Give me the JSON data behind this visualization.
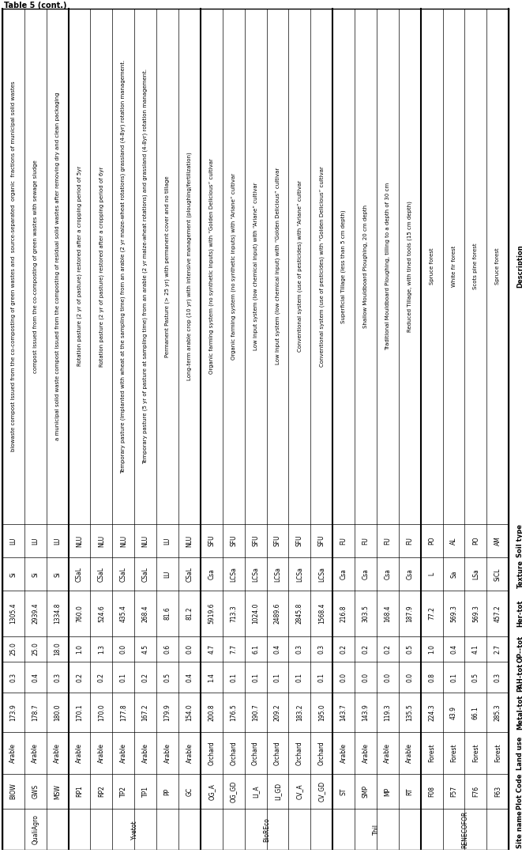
{
  "title": "Table 5 (cont.)",
  "col_headers": [
    "Site name",
    "Plot Code",
    "Land use",
    "Metal-tot",
    "PAH-tot",
    "OP-\ntot",
    "Her-tot",
    "Texture",
    "Soil type",
    "Description"
  ],
  "rows": [
    [
      "QualiAgro",
      "BIOW",
      "Arable",
      "173.9",
      "0.3",
      "25.0",
      "1305.4",
      "Si",
      "LU",
      "biowaste compost issued from the co-composting of green wastes and  source-separated  organic  fractions\nof municipal solid wastes"
    ],
    [
      "",
      "GWS",
      "Arable",
      "178.7",
      "0.4",
      "25.0",
      "2939.4",
      "Si",
      "LU",
      "compost issued from the co-composting of green wastes with sewage sludge"
    ],
    [
      "",
      "MSW",
      "Arable",
      "180.0",
      "0.3",
      "18.0",
      "1334.8",
      "Si",
      "LU",
      "a municipal solid waste compost issued from the composting of residual solid wastes after removing dry and cl⁠ean\npackaging"
    ],
    [
      "Yvetot",
      "RP1",
      "Arable",
      "170.1",
      "0.2",
      "1.0",
      "760.0",
      "CSaL",
      "NLU",
      "Rotation pasture (2 yr of pasture) restored after a cropping period of 5yr"
    ],
    [
      "",
      "RP2",
      "Arable",
      "170.0",
      "0.2",
      "1.3",
      "524.6",
      "CSaL",
      "NLU",
      "Rotation pasture (2 yr of pasture) restored after a cropping period of 6yr"
    ],
    [
      "",
      "TP2",
      "Arable",
      "177.8",
      "0.1",
      "0.0",
      "435.4",
      "CSaL",
      "NLU",
      "Temporary pasture (implanted with wheat at the sampling time) from an arable (2 yr maize-wheat rotations)\ngrassland (4-8yr) rotation management."
    ],
    [
      "",
      "TP1",
      "Arable",
      "167.2",
      "0.2",
      "4.5",
      "268.4",
      "CSaL",
      "NLU",
      "Temporary pasture (5 yr of pasture at sampling time) from an arable (2 yr maize-wheat rotations) and grassland\n(4-8yr) rotation management."
    ],
    [
      "",
      "PP",
      "Arable",
      "179.9",
      "0.5",
      "0.6",
      "81.6",
      "LU",
      "LU",
      "Permanent Pasture (> 25 yr) with permanent cover and no tillage"
    ],
    [
      "",
      "GC",
      "Arable",
      "154.0",
      "0.4",
      "0.0",
      "81.2",
      "CSaL",
      "NLU",
      "Long-term arable crop (10 yr) with intensive management (ploughing/fertilization)"
    ],
    [
      "BioREco",
      "OG_A",
      "Orchard",
      "200.8",
      "1.4",
      "4.7",
      "5919.6",
      "Csa",
      "SFU",
      "Organic farming system (no synthetic inputs) with “Golden Delicious” cultivar"
    ],
    [
      "",
      "OG_GD",
      "Orchard",
      "176.5",
      "0.1",
      "7.7",
      "713.3",
      "LCSa",
      "SFU",
      "Organic farming system (no synthetic inputs) with “Ariane” cultivar"
    ],
    [
      "",
      "LI_A",
      "Orchard",
      "190.7",
      "0.1",
      "6.1",
      "1024.0",
      "LCSa",
      "SFU",
      "Low Input system (low chemical input) with “Ariane” cultivar"
    ],
    [
      "",
      "LI_GD",
      "Orchard",
      "209.2",
      "0.1",
      "0.4",
      "2489.6",
      "LCSa",
      "SFU",
      "Low Input system (low chemical input) with “Golden Delicious” cultivar"
    ],
    [
      "",
      "CV_A",
      "Orchard",
      "183.2",
      "0.1",
      "0.3",
      "2845.8",
      "LCSa",
      "SFU",
      "Conventional system (use of pesticides) with “Ariane” cultivar"
    ],
    [
      "",
      "CV_GD",
      "Orchard",
      "195.0",
      "0.1",
      "0.3",
      "1568.4",
      "LCSa",
      "SFU",
      "Conventional system (use of pesticides) with “Golden Delicious” cultivar"
    ],
    [
      "Thil",
      "ST",
      "Arable",
      "143.7",
      "0.0",
      "0.2",
      "216.8",
      "Csa",
      "FU",
      "Superficial Tillage (less than 5 cm depth)"
    ],
    [
      "",
      "SMP",
      "Arable",
      "143.9",
      "0.0",
      "0.2",
      "303.5",
      "Csa",
      "FU",
      "Shallow Mouldboard Ploughing, 20 cm depth"
    ],
    [
      "",
      "MP",
      "Arable",
      "119.3",
      "0.0",
      "0.2",
      "168.4",
      "Csa",
      "FU",
      "Traditional Mouldboard Ploughing, tilling to a depth of 30 cm"
    ],
    [
      "",
      "RT",
      "Arable",
      "135.5",
      "0.0",
      "0.5",
      "187.9",
      "Csa",
      "FU",
      "Reduced Tillage, with tined tools (15 cm depth)"
    ],
    [
      "RENECOFOR",
      "F08",
      "Forest",
      "224.3",
      "0.8",
      "1.0",
      "77.2",
      "L",
      "PO",
      "Spruce forest"
    ],
    [
      "",
      "F57",
      "Forest",
      "43.9",
      "0.1",
      "0.4",
      "569.3",
      "Sa",
      "AL",
      "White fir forest"
    ],
    [
      "",
      "F76",
      "Forest",
      "66.1",
      "0.5",
      "4.1",
      "569.3",
      "LSa",
      "PO",
      "Scots pine forest"
    ],
    [
      "",
      "F63",
      "Forest",
      "285.3",
      "0.3",
      "2.7",
      "457.2",
      "SiCL",
      "AM",
      "Spruce forest"
    ]
  ],
  "font_size": 5.5,
  "header_font_size": 6.0,
  "line_color": "#000000",
  "header_bg": "#d9d9d9",
  "white": "#ffffff",
  "separator_color": "#aaaaaa"
}
